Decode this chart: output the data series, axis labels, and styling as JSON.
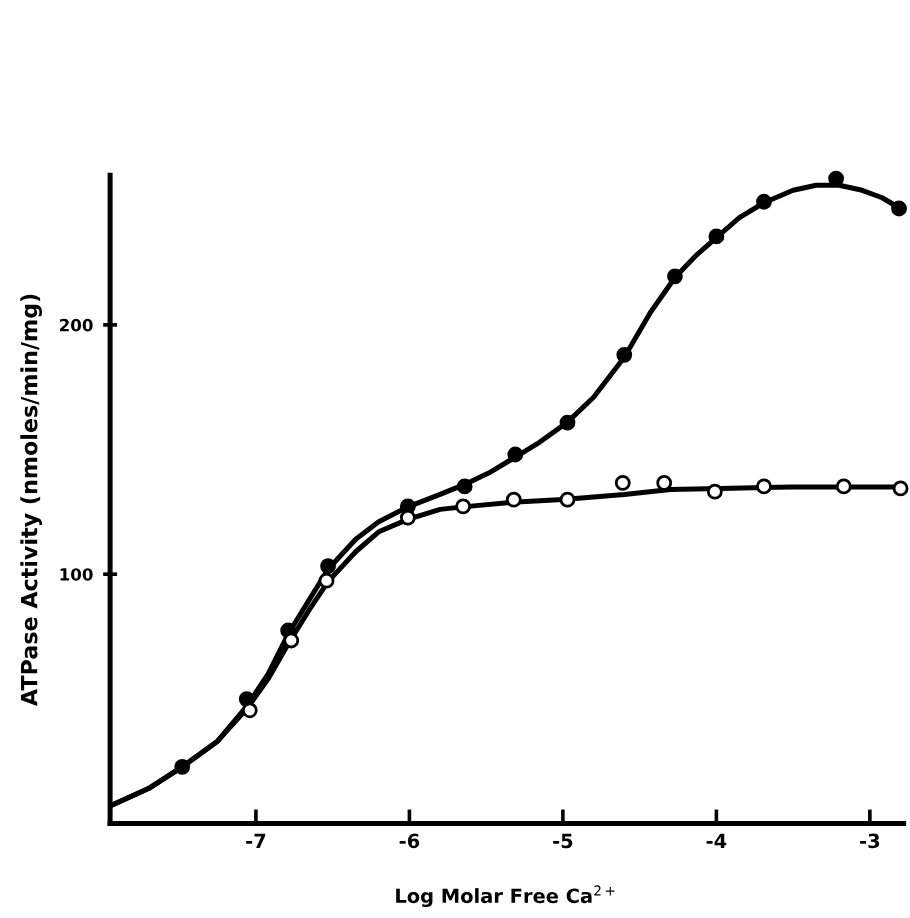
{
  "chart_data": {
    "type": "scatter",
    "xlabel": "Log Molar Free Ca$^{2+}$",
    "ylabel": "ATPase Activity (nmoles/min/mg)",
    "xlim": [
      -7.95,
      -2.78
    ],
    "ylim": [
      0,
      260
    ],
    "xticks": [
      -7,
      -6,
      -5,
      -4,
      -3
    ],
    "yticks": [
      100,
      200
    ],
    "grid": false,
    "legend": false,
    "series": [
      {
        "type": "line",
        "color": "#000000",
        "marker": "none",
        "line_style": "solid",
        "x": [
          -7.95,
          -7.7,
          -7.48,
          -7.25,
          -7.06,
          -6.92,
          -6.79,
          -6.65,
          -6.53,
          -6.35,
          -6.2,
          -6.01,
          -5.8,
          -5.64,
          -5.47,
          -5.31,
          -5.15,
          -4.97,
          -4.8,
          -4.6,
          -4.43,
          -4.27,
          -4.13,
          -4.0,
          -3.85,
          -3.69,
          -3.5,
          -3.35,
          -3.2,
          -3.05,
          -2.92,
          -2.81
        ],
        "values": [
          7,
          14,
          22.7,
          33,
          47,
          60,
          76,
          90,
          102,
          114,
          121,
          127,
          132,
          136,
          141,
          147,
          153,
          161,
          171,
          187,
          205,
          219,
          228,
          235,
          243,
          249,
          254,
          256,
          256,
          254,
          251,
          247
        ]
      },
      {
        "type": "line",
        "color": "#000000",
        "marker": "none",
        "line_style": "solid",
        "x": [
          -7.95,
          -7.7,
          -7.48,
          -7.25,
          -7.06,
          -6.92,
          -6.79,
          -6.65,
          -6.53,
          -6.35,
          -6.2,
          -6.01,
          -5.8,
          -5.65,
          -5.3,
          -5.0,
          -4.6,
          -4.3,
          -3.9,
          -3.5,
          -2.8
        ],
        "values": [
          7,
          14,
          22.7,
          33,
          46,
          58,
          72,
          86,
          97,
          109,
          117,
          122,
          126,
          127,
          129,
          130,
          132,
          134,
          134.5,
          135,
          135
        ]
      },
      {
        "color": "#000000",
        "marker": "circle",
        "x": [
          -7.48,
          -7.06,
          -6.79,
          -6.53,
          -6.01,
          -5.64,
          -5.31,
          -4.97,
          -4.6,
          -4.27,
          -4.0,
          -3.69,
          -3.22,
          -2.81
        ],
        "values": [
          22.7,
          49.9,
          77.4,
          103.2,
          127.2,
          135.2,
          148,
          160.8,
          188,
          219.5,
          235.5,
          249.4,
          258.7,
          246.7
        ]
      },
      {
        "color": "#ffffff",
        "marker": "circle",
        "x": [
          -7.04,
          -6.77,
          -6.54,
          -6.01,
          -5.65,
          -5.32,
          -4.97,
          -4.61,
          -4.34,
          -4.01,
          -3.69,
          -3.17,
          -2.8
        ],
        "values": [
          45.4,
          73.4,
          97.4,
          122.7,
          127.2,
          129.9,
          129.9,
          136.6,
          136.6,
          133.1,
          135.2,
          135.2,
          134.4
        ]
      }
    ]
  }
}
